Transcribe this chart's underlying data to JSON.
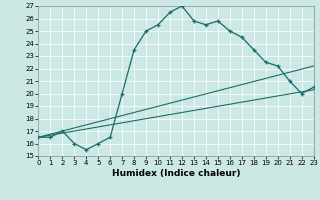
{
  "xlabel": "Humidex (Indice chaleur)",
  "xlim": [
    0,
    23
  ],
  "ylim": [
    15,
    27
  ],
  "yticks": [
    15,
    16,
    17,
    18,
    19,
    20,
    21,
    22,
    23,
    24,
    25,
    26,
    27
  ],
  "xticks": [
    0,
    1,
    2,
    3,
    4,
    5,
    6,
    7,
    8,
    9,
    10,
    11,
    12,
    13,
    14,
    15,
    16,
    17,
    18,
    19,
    20,
    21,
    22,
    23
  ],
  "bg_color": "#cce8e5",
  "line_color": "#1a6b6b",
  "line1_x": [
    0,
    1,
    2,
    3,
    4,
    5,
    6,
    7,
    8,
    9,
    10,
    11,
    12,
    13,
    14,
    15,
    16,
    17,
    18,
    19,
    20,
    21,
    22,
    23
  ],
  "line1_y": [
    16.5,
    16.5,
    17.0,
    16.0,
    15.5,
    16.0,
    16.5,
    20.0,
    23.5,
    25.0,
    25.5,
    26.5,
    27.0,
    25.8,
    25.5,
    25.8,
    25.0,
    24.5,
    23.5,
    22.5,
    22.2,
    21.0,
    20.0,
    20.5
  ],
  "line2_x": [
    0,
    23
  ],
  "line2_y": [
    16.5,
    22.2
  ],
  "line3_x": [
    0,
    23
  ],
  "line3_y": [
    16.5,
    20.3
  ],
  "grid_color": "#ffffff",
  "xlabel_fontsize": 6.5,
  "tick_fontsize": 5.0
}
